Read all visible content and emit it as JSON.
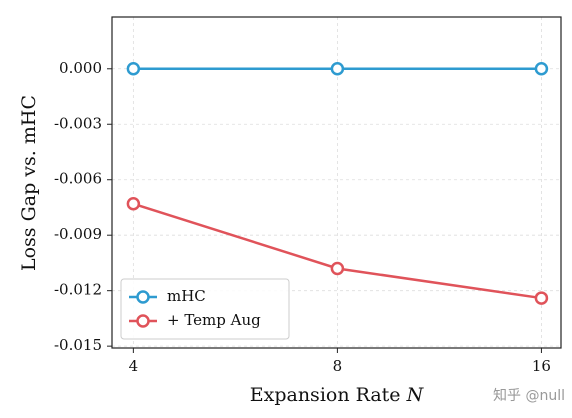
{
  "chart_data": {
    "type": "line",
    "ylabel": "Loss Gap vs. mHC",
    "xlabel": "Expansion Rate",
    "xlabel_var": "N",
    "x": [
      4,
      8,
      16
    ],
    "xlim": [
      3.72,
      17.1
    ],
    "xlog": true,
    "xticks": [
      4,
      8,
      16
    ],
    "ylim": [
      -0.0151,
      0.0028
    ],
    "yticks": [
      {
        "value": 0,
        "label": "0.000"
      },
      {
        "value": -0.003,
        "label": "-0.003"
      },
      {
        "value": -0.006,
        "label": "-0.006"
      },
      {
        "value": -0.009,
        "label": "-0.009"
      },
      {
        "value": -0.012,
        "label": "-0.012"
      },
      {
        "value": -0.015,
        "label": "-0.015"
      }
    ],
    "grid": true,
    "legend": "lower left",
    "series": [
      {
        "name": "mHC",
        "color": "#2e9bd0",
        "values": [
          0,
          0,
          0
        ]
      },
      {
        "name": "+ Temp Aug",
        "color": "#e0535a",
        "values": [
          -0.0073,
          -0.0108,
          -0.0124
        ]
      }
    ],
    "watermark": "知乎 @null"
  }
}
